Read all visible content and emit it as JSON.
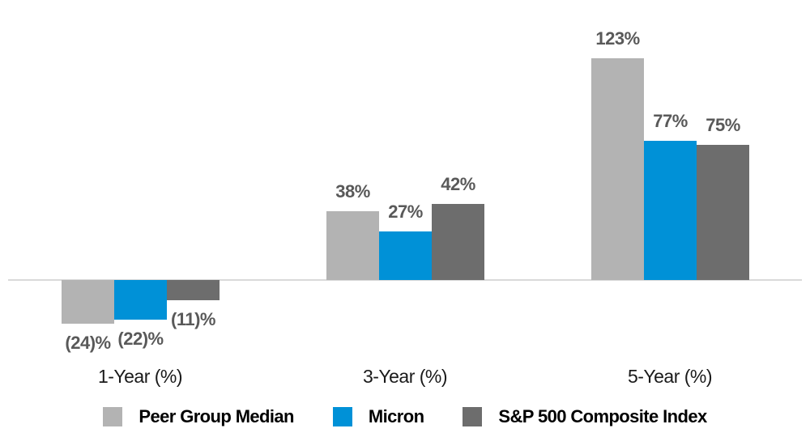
{
  "chart_data": {
    "type": "bar",
    "title": "",
    "categories": [
      "1-Year (%)",
      "3-Year (%)",
      "5-Year (%)"
    ],
    "series": [
      {
        "name": "Peer Group Median",
        "color": "#b3b3b3",
        "values": [
          -24,
          38,
          123
        ],
        "labels": [
          "(24)%",
          "38%",
          "123%"
        ]
      },
      {
        "name": "Micron",
        "color": "#0091d7",
        "values": [
          -22,
          27,
          77
        ],
        "labels": [
          "(22)%",
          "27%",
          "77%"
        ]
      },
      {
        "name": "S&P 500 Composite Index",
        "color": "#6d6d6d",
        "values": [
          -11,
          42,
          75
        ],
        "labels": [
          "(11)%",
          "42%",
          "75%"
        ]
      }
    ],
    "ylim": [
      -35,
      140
    ],
    "grid": false,
    "legend_position": "bottom",
    "axis_line_color": "#d9d9d9",
    "value_label_color": "#595959",
    "category_label_color": "#1a1a1a",
    "legend_text_color": "#000000"
  }
}
